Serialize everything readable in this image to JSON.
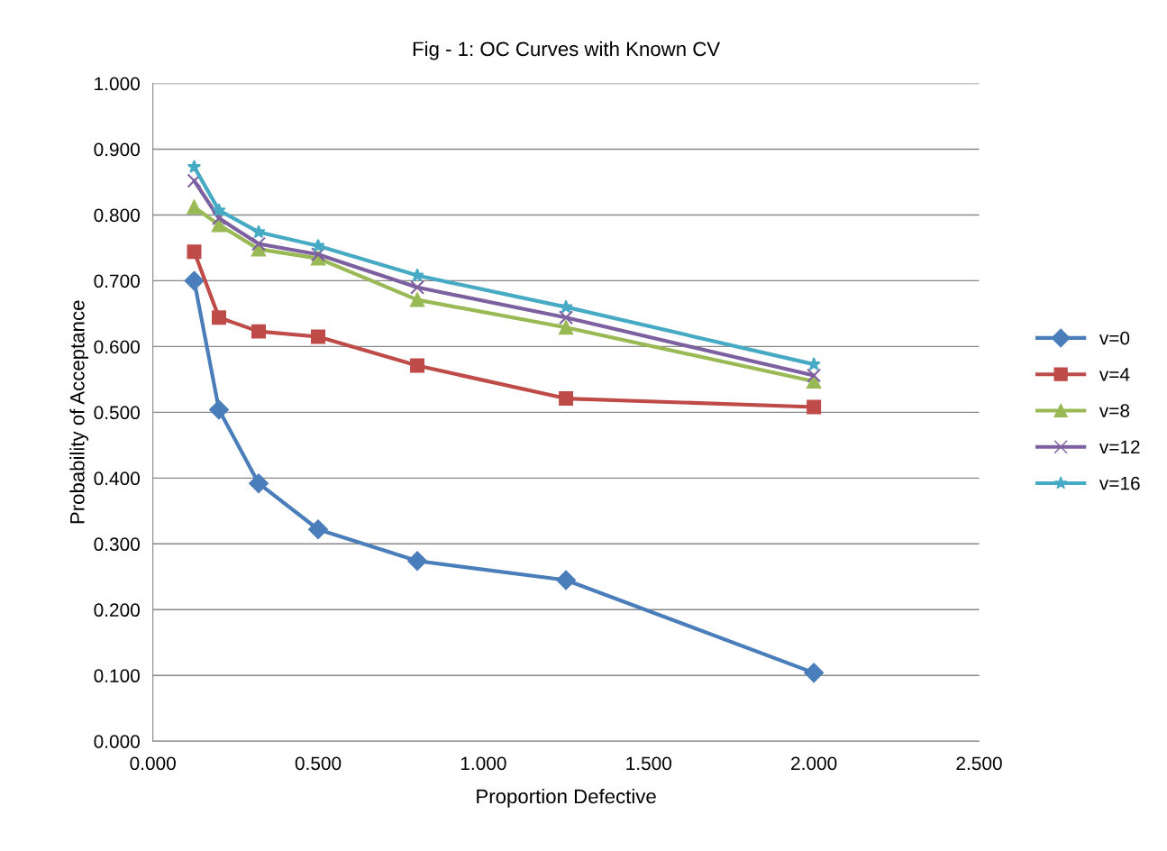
{
  "chart_data": {
    "type": "line",
    "title": "Fig - 1: OC Curves with Known CV",
    "xlabel": "Proportion Defective",
    "ylabel": "Probability of Acceptance",
    "x": [
      0.125,
      0.2,
      0.32,
      0.5,
      0.8,
      1.25,
      2.0
    ],
    "series": [
      {
        "name": "v=0",
        "color": "#4a7ebb",
        "marker": "diamond",
        "values": [
          0.7,
          0.504,
          0.392,
          0.322,
          0.274,
          0.245,
          0.104
        ]
      },
      {
        "name": "v=4",
        "color": "#be4b48",
        "marker": "square",
        "values": [
          0.744,
          0.644,
          0.623,
          0.615,
          0.571,
          0.521,
          0.508
        ]
      },
      {
        "name": "v=8",
        "color": "#98b954",
        "marker": "triangle",
        "values": [
          0.812,
          0.785,
          0.748,
          0.734,
          0.671,
          0.629,
          0.547
        ]
      },
      {
        "name": "v=12",
        "color": "#7d60a0",
        "marker": "cross",
        "values": [
          0.852,
          0.795,
          0.756,
          0.74,
          0.69,
          0.644,
          0.556
        ]
      },
      {
        "name": "v=16",
        "color": "#46aac5",
        "marker": "star",
        "values": [
          0.873,
          0.807,
          0.774,
          0.753,
          0.708,
          0.66,
          0.573
        ]
      }
    ],
    "xlim": [
      0,
      2.5
    ],
    "xticks": [
      {
        "value": 0,
        "label": "0.000"
      },
      {
        "value": 0.5,
        "label": "0.500"
      },
      {
        "value": 1.0,
        "label": "1.000"
      },
      {
        "value": 1.5,
        "label": "1.500"
      },
      {
        "value": 2.0,
        "label": "2.000"
      },
      {
        "value": 2.5,
        "label": "2.500"
      }
    ],
    "ylim": [
      0,
      1.0
    ],
    "yticks": [
      {
        "value": 0,
        "label": "0.000"
      },
      {
        "value": 0.1,
        "label": "0.100"
      },
      {
        "value": 0.2,
        "label": "0.200"
      },
      {
        "value": 0.3,
        "label": "0.300"
      },
      {
        "value": 0.4,
        "label": "0.400"
      },
      {
        "value": 0.5,
        "label": "0.500"
      },
      {
        "value": 0.6,
        "label": "0.600"
      },
      {
        "value": 0.7,
        "label": "0.700"
      },
      {
        "value": 0.8,
        "label": "0.800"
      },
      {
        "value": 0.9,
        "label": "0.900"
      },
      {
        "value": 1.0,
        "label": "1.000"
      }
    ],
    "grid": "y",
    "legend": "right",
    "line_style": "solid"
  }
}
